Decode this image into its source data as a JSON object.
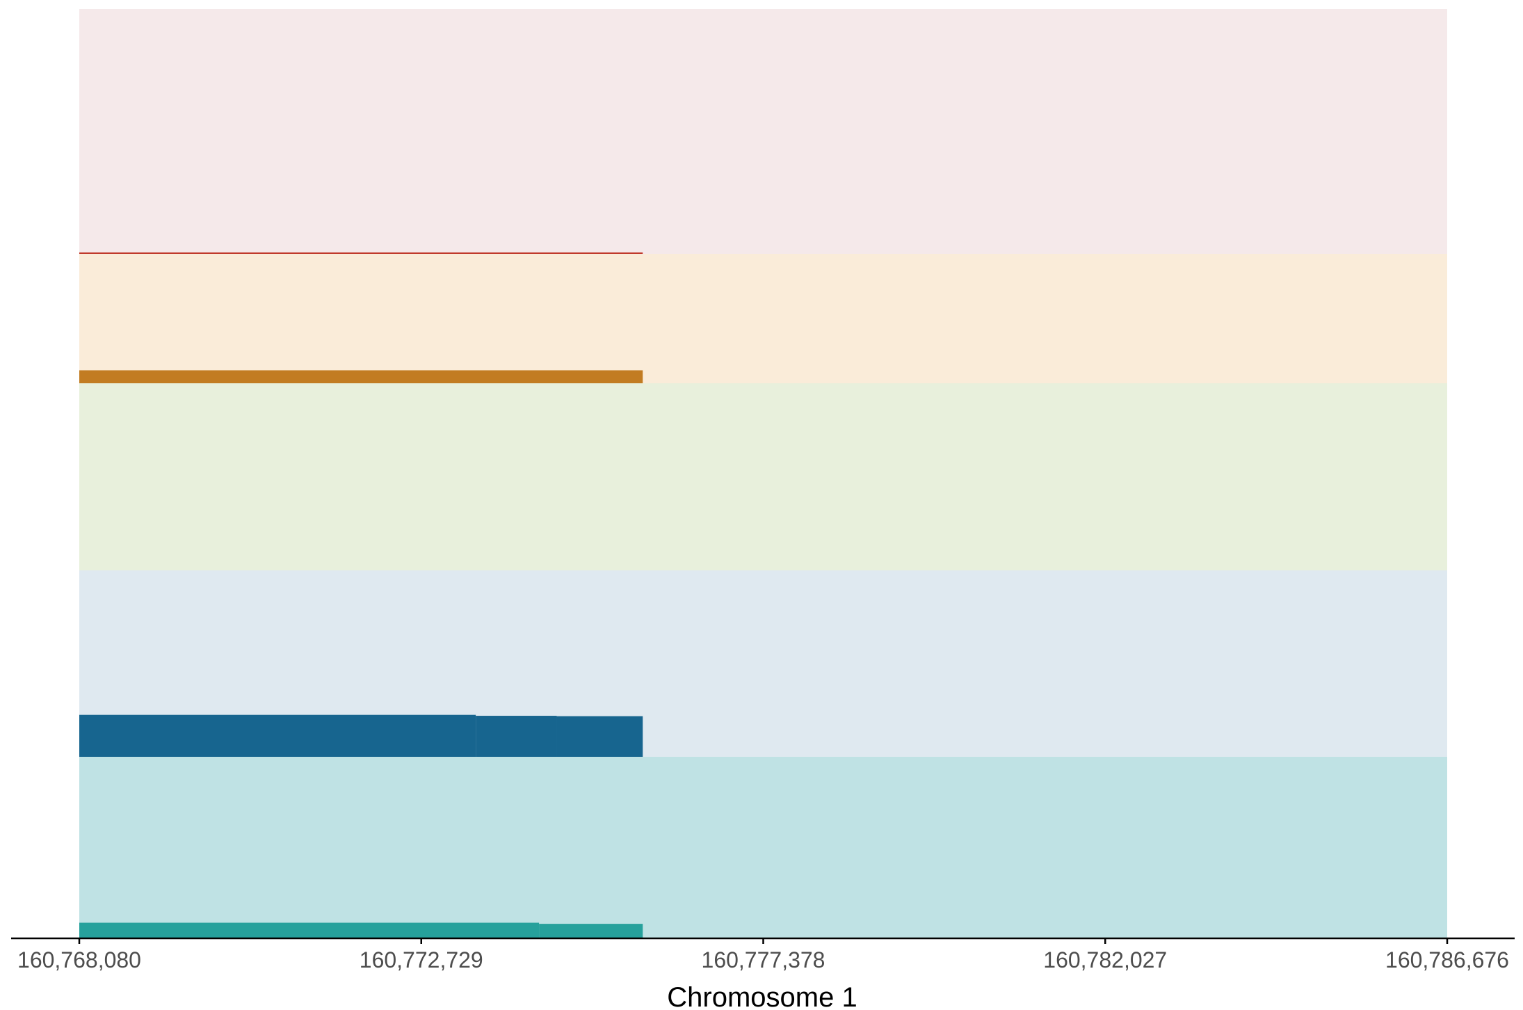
{
  "chart_data": {
    "type": "genome-track",
    "xlabel": "Chromosome 1",
    "xlim": [
      160768080,
      160786676
    ],
    "ticks": [
      {
        "value": 160768080,
        "label": "160,768,080"
      },
      {
        "value": 160772729,
        "label": "160,772,729"
      },
      {
        "value": 160777378,
        "label": "160,777,378"
      },
      {
        "value": 160782027,
        "label": "160,782,027"
      },
      {
        "value": 160786676,
        "label": "160,786,676"
      }
    ],
    "tracks": [
      {
        "id": "track-1",
        "ylim": [
          0,
          100
        ],
        "background": "#f5e9ea",
        "color": "#c0392b",
        "segments": [
          {
            "start": 160768080,
            "end": 160775740,
            "value": 0.6
          }
        ]
      },
      {
        "id": "track-2",
        "ylim": [
          0,
          100
        ],
        "background": "#faecd9",
        "color": "#c27c22",
        "segments": [
          {
            "start": 160768080,
            "end": 160775740,
            "value": 10
          }
        ]
      },
      {
        "id": "track-3",
        "ylim": [
          0,
          100
        ],
        "background": "#e8f0dc",
        "color": "#8aae3c",
        "segments": []
      },
      {
        "id": "track-4",
        "ylim": [
          0,
          100
        ],
        "background": "#dfe9f0",
        "color": "#17658f",
        "segments": [
          {
            "start": 160768080,
            "end": 160773470,
            "value": 22.5
          },
          {
            "start": 160773470,
            "end": 160774570,
            "value": 22.0
          },
          {
            "start": 160774570,
            "end": 160775740,
            "value": 21.8
          }
        ]
      },
      {
        "id": "track-5",
        "ylim": [
          0,
          100
        ],
        "background": "#bfe2e4",
        "color": "#26a19c",
        "segments": [
          {
            "start": 160768080,
            "end": 160774330,
            "value": 8.6
          },
          {
            "start": 160774330,
            "end": 160775740,
            "value": 8.0
          }
        ]
      }
    ],
    "grid": false,
    "legend": "none"
  }
}
